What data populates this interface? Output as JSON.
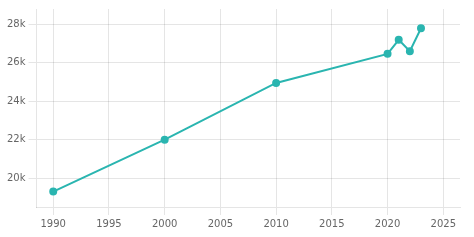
{
  "chart_data": {
    "type": "line",
    "x": [
      1990,
      2000,
      2010,
      2020,
      2021,
      2022,
      2023
    ],
    "values": [
      19304,
      22000,
      24953,
      26466,
      27200,
      26600,
      27800
    ],
    "color": "#2ab5b0",
    "marker": "circle",
    "xlim": [
      1988.5,
      2026.5
    ],
    "xticks": [
      1990,
      1995,
      2000,
      2005,
      2010,
      2015,
      2020,
      2025
    ],
    "ylim": [
      18500,
      28800
    ],
    "yticks": [
      {
        "value": 20000,
        "label": "20k"
      },
      {
        "value": 22000,
        "label": "22k"
      },
      {
        "value": 24000,
        "label": "24k"
      },
      {
        "value": 26000,
        "label": "26k"
      },
      {
        "value": 28000,
        "label": "28k"
      }
    ],
    "grid": true
  }
}
